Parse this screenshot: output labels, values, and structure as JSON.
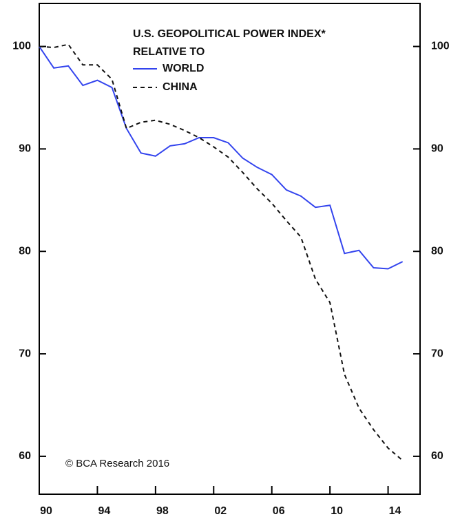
{
  "chart_data": {
    "type": "line",
    "title": "U.S. GEOPOLITICAL POWER INDEX*",
    "subtitle": "RELATIVE TO",
    "annotation": "© BCA Research 2016",
    "x": [
      1990,
      1991,
      1992,
      1993,
      1994,
      1995,
      1996,
      1997,
      1998,
      1999,
      2000,
      2001,
      2002,
      2003,
      2004,
      2005,
      2006,
      2007,
      2008,
      2009,
      2010,
      2011,
      2012,
      2013,
      2014,
      2015
    ],
    "series": [
      {
        "name": "WORLD",
        "color": "#3344ee",
        "dash": false,
        "values": [
          100,
          97.9,
          98.1,
          96.2,
          96.7,
          96.0,
          92.0,
          89.6,
          89.3,
          90.3,
          90.5,
          91.1,
          91.1,
          90.6,
          89.1,
          88.2,
          87.5,
          86.0,
          85.4,
          84.3,
          84.5,
          79.8,
          80.1,
          78.4,
          78.3,
          79.0
        ]
      },
      {
        "name": "CHINA",
        "color": "#111111",
        "dash": true,
        "values": [
          100,
          99.9,
          100.2,
          98.2,
          98.2,
          96.8,
          92.0,
          92.6,
          92.8,
          92.4,
          91.8,
          91.1,
          90.2,
          89.2,
          87.7,
          86.1,
          84.7,
          83.0,
          81.4,
          77.3,
          75.0,
          68.0,
          64.7,
          62.6,
          60.8,
          59.6
        ]
      }
    ],
    "xlim": [
      1990,
      2016.2
    ],
    "xticks": [
      {
        "value": 1990,
        "label": "90"
      },
      {
        "value": 1994,
        "label": "94"
      },
      {
        "value": 1998,
        "label": "98"
      },
      {
        "value": 2002,
        "label": "02"
      },
      {
        "value": 2006,
        "label": "06"
      },
      {
        "value": 2010,
        "label": "10"
      },
      {
        "value": 2014,
        "label": "14"
      }
    ],
    "ylim": [
      56.3,
      104.2
    ],
    "yticks": [
      60,
      70,
      80,
      90,
      100
    ],
    "grid": false,
    "legend": "top"
  }
}
